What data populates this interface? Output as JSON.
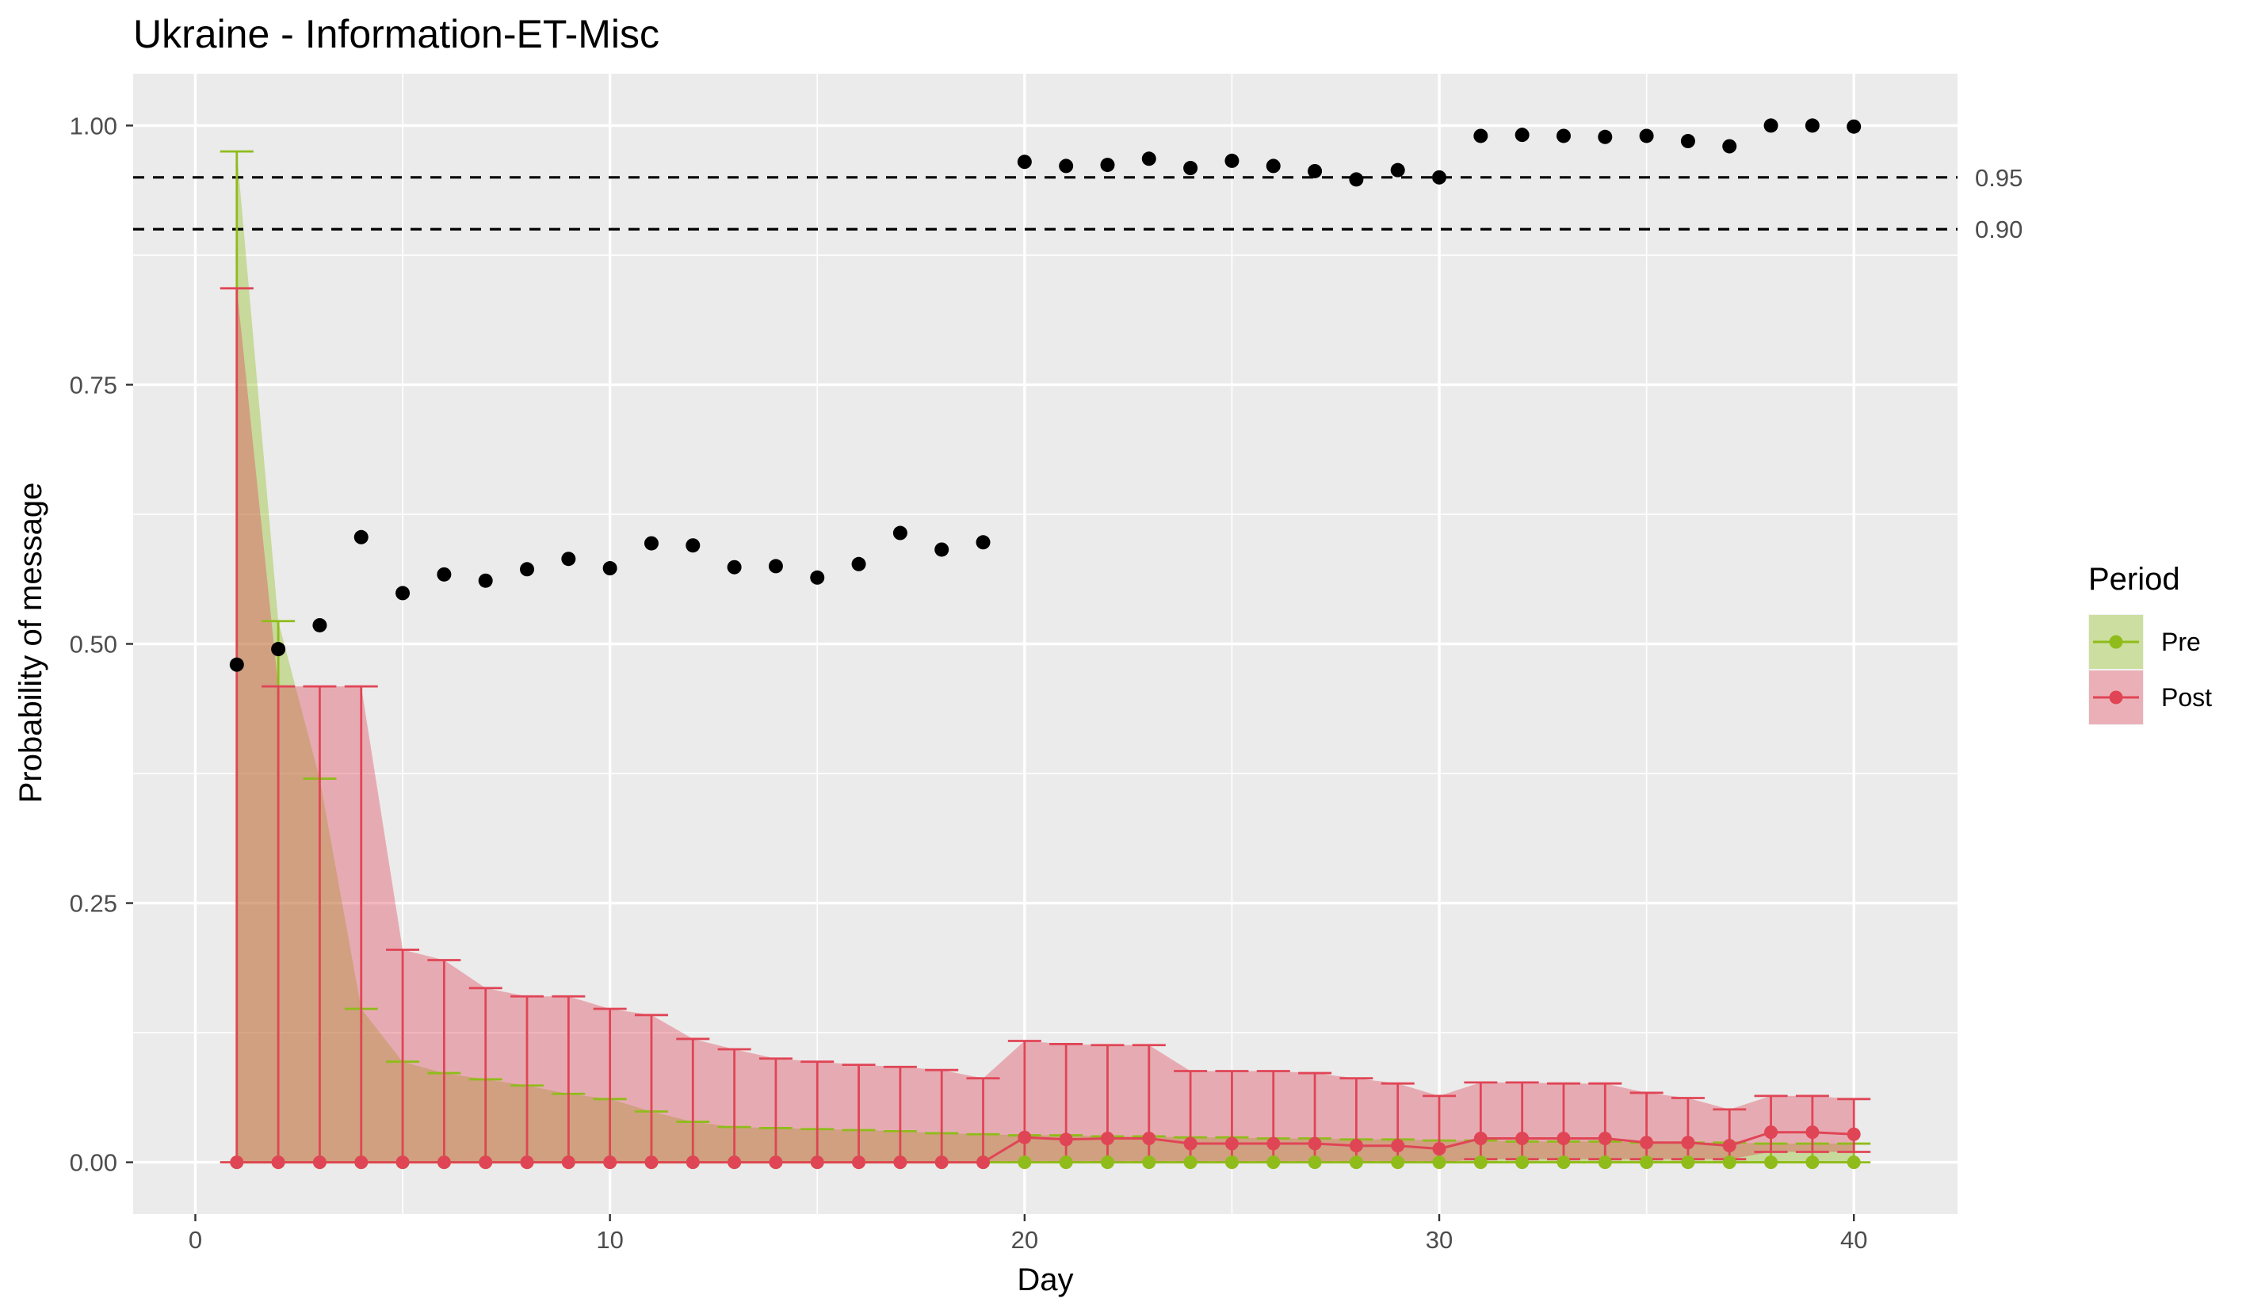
{
  "chart_data": {
    "type": "line",
    "title": "Ukraine - Information-ET-Misc",
    "xlabel": "Day",
    "ylabel": "Probability of message",
    "xlim": [
      -1.5,
      42.5
    ],
    "ylim": [
      -0.05,
      1.05
    ],
    "x_ticks": [
      0,
      10,
      20,
      30,
      40
    ],
    "x_tick_labels": [
      "0",
      "10",
      "20",
      "30",
      "40"
    ],
    "y_ticks": [
      0,
      0.25,
      0.5,
      0.75,
      1
    ],
    "y_tick_labels": [
      "0.00",
      "0.25",
      "0.50",
      "0.75",
      "1.00"
    ],
    "grid": true,
    "legend": {
      "title": "Period",
      "position": "right"
    },
    "reference_lines": [
      {
        "y": 0.95,
        "label": "0.95",
        "style": "dashed"
      },
      {
        "y": 0.9,
        "label": "0.90",
        "style": "dashed"
      }
    ],
    "x": [
      1,
      2,
      3,
      4,
      5,
      6,
      7,
      8,
      9,
      10,
      11,
      12,
      13,
      14,
      15,
      16,
      17,
      18,
      19,
      20,
      21,
      22,
      23,
      24,
      25,
      26,
      27,
      28,
      29,
      30,
      31,
      32,
      33,
      34,
      35,
      36,
      37,
      38,
      39,
      40
    ],
    "black_points": [
      0.48,
      0.495,
      0.518,
      0.603,
      0.549,
      0.567,
      0.561,
      0.572,
      0.582,
      0.573,
      0.597,
      0.595,
      0.574,
      0.575,
      0.564,
      0.577,
      0.607,
      0.591,
      0.598,
      0.965,
      0.961,
      0.962,
      0.968,
      0.959,
      0.966,
      0.961,
      0.956,
      0.948,
      0.957,
      0.95,
      0.99,
      0.991,
      0.99,
      0.989,
      0.99,
      0.985,
      0.98,
      1.0,
      1.0,
      0.999
    ],
    "series": [
      {
        "name": "Pre",
        "color": "#8fbc1a",
        "fill": "#c8d98d",
        "values": [
          0,
          0,
          0,
          0,
          0,
          0,
          0,
          0,
          0,
          0,
          0,
          0,
          0,
          0,
          0,
          0,
          0,
          0,
          0,
          0,
          0,
          0,
          0,
          0,
          0,
          0,
          0,
          0,
          0,
          0,
          0,
          0,
          0,
          0,
          0,
          0,
          0,
          0,
          0,
          0
        ],
        "upper": [
          0.975,
          0.522,
          0.37,
          0.148,
          0.097,
          0.086,
          0.08,
          0.074,
          0.066,
          0.061,
          0.049,
          0.039,
          0.034,
          0.033,
          0.032,
          0.031,
          0.03,
          0.028,
          0.027,
          0.026,
          0.026,
          0.025,
          0.025,
          0.024,
          0.024,
          0.023,
          0.023,
          0.022,
          0.022,
          0.021,
          0.021,
          0.02,
          0.02,
          0.02,
          0.019,
          0.019,
          0.019,
          0.018,
          0.018,
          0.018
        ]
      },
      {
        "name": "Post",
        "color": "#e04556",
        "fill": "#eba3ac",
        "values": [
          0,
          0,
          0,
          0,
          0,
          0,
          0,
          0,
          0,
          0,
          0,
          0,
          0,
          0,
          0,
          0,
          0,
          0,
          0,
          0.024,
          0.022,
          0.023,
          0.023,
          0.018,
          0.018,
          0.018,
          0.018,
          0.016,
          0.016,
          0.013,
          0.023,
          0.023,
          0.023,
          0.023,
          0.019,
          0.019,
          0.016,
          0.029,
          0.029,
          0.027
        ],
        "lower": [
          0,
          0,
          0,
          0,
          0,
          0,
          0,
          0,
          0,
          0,
          0,
          0,
          0,
          0,
          0,
          0,
          0,
          0,
          0,
          0,
          0,
          0,
          0,
          0,
          0,
          0,
          0,
          0,
          0,
          0,
          0.003,
          0.003,
          0.003,
          0.003,
          0.003,
          0.003,
          0.003,
          0.01,
          0.01,
          0.01
        ],
        "upper": [
          0.843,
          0.459,
          0.459,
          0.459,
          0.205,
          0.195,
          0.168,
          0.16,
          0.16,
          0.148,
          0.142,
          0.119,
          0.109,
          0.1,
          0.097,
          0.094,
          0.092,
          0.089,
          0.081,
          0.117,
          0.114,
          0.113,
          0.113,
          0.088,
          0.088,
          0.088,
          0.086,
          0.081,
          0.076,
          0.064,
          0.077,
          0.077,
          0.076,
          0.076,
          0.067,
          0.062,
          0.051,
          0.064,
          0.064,
          0.061
        ]
      }
    ]
  }
}
